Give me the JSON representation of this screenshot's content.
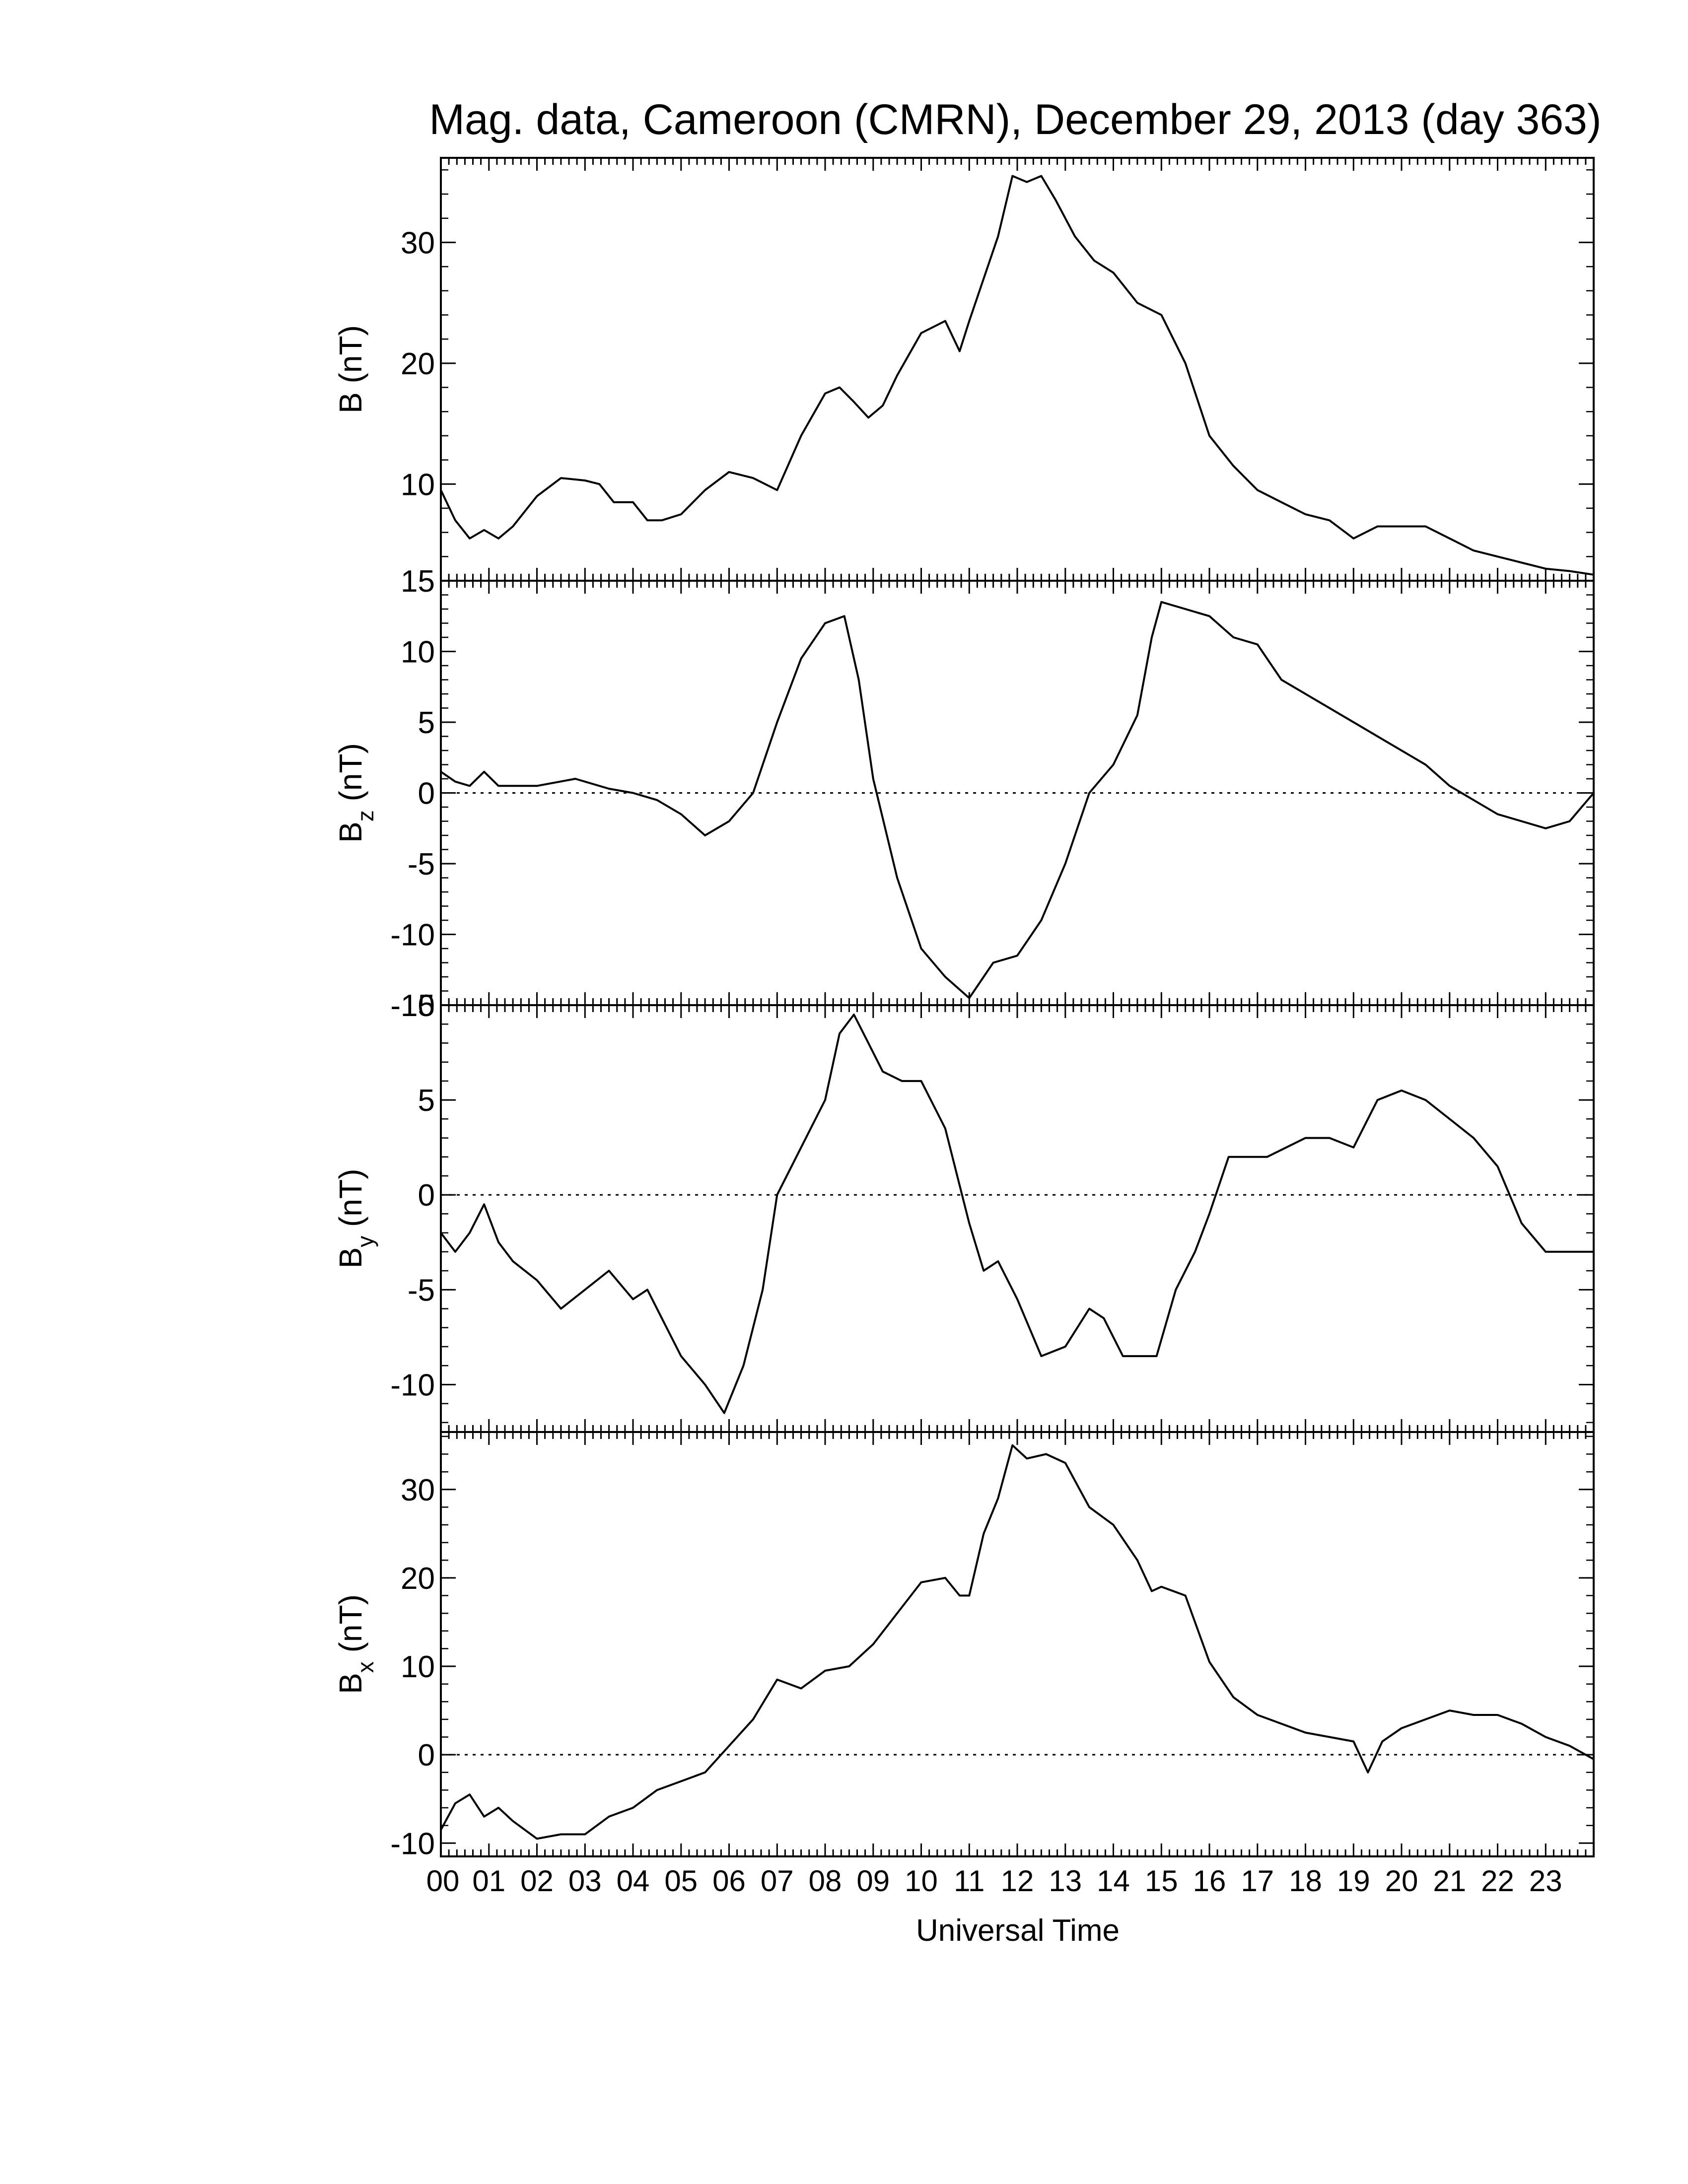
{
  "title": "Mag. data, Cameroon (CMRN), December 29, 2013 (day 363)",
  "xlabel": "Universal Time",
  "x_ticks": [
    "00",
    "01",
    "02",
    "03",
    "04",
    "05",
    "06",
    "07",
    "08",
    "09",
    "10",
    "11",
    "12",
    "13",
    "14",
    "15",
    "16",
    "17",
    "18",
    "19",
    "20",
    "21",
    "22",
    "23"
  ],
  "chart_data": [
    {
      "type": "line",
      "ylabel": "B (nT)",
      "ylabel_sub": "",
      "ylim": [
        2,
        37
      ],
      "yticks": [
        10,
        20,
        30
      ],
      "xlim": [
        0,
        24
      ],
      "zero_line": false,
      "x": [
        0,
        0.3,
        0.6,
        0.9,
        1.2,
        1.5,
        2.0,
        2.5,
        3.0,
        3.3,
        3.6,
        4.0,
        4.3,
        4.6,
        5.0,
        5.5,
        6.0,
        6.5,
        7.0,
        7.5,
        8.0,
        8.3,
        8.6,
        8.9,
        9.2,
        9.5,
        10.0,
        10.5,
        10.8,
        11.0,
        11.3,
        11.6,
        11.9,
        12.2,
        12.5,
        12.8,
        13.2,
        13.6,
        14.0,
        14.5,
        15.0,
        15.5,
        16.0,
        16.5,
        17.0,
        17.5,
        18.0,
        18.5,
        19.0,
        19.5,
        20.0,
        20.5,
        21.0,
        21.5,
        22.0,
        22.5,
        23.0,
        23.5,
        24.0
      ],
      "y": [
        9.5,
        7.0,
        5.5,
        6.2,
        5.5,
        6.5,
        9.0,
        10.5,
        10.3,
        10.0,
        8.5,
        8.5,
        7.0,
        7.0,
        7.5,
        9.5,
        11.0,
        10.5,
        9.5,
        14.0,
        17.5,
        18.0,
        16.8,
        15.5,
        16.5,
        19.0,
        22.5,
        23.5,
        21.0,
        23.5,
        27.0,
        30.5,
        35.5,
        35.0,
        35.5,
        33.5,
        30.5,
        28.5,
        27.5,
        25.0,
        24.0,
        20.0,
        14.0,
        11.5,
        9.5,
        8.5,
        7.5,
        7.0,
        5.5,
        6.5,
        6.5,
        6.5,
        5.5,
        4.5,
        4.0,
        3.5,
        3.0,
        2.8,
        2.5
      ]
    },
    {
      "type": "line",
      "ylabel": "B",
      "ylabel_sub": "z",
      "ylabel_unit": "(nT)",
      "ylim": [
        -15,
        15
      ],
      "yticks": [
        -15,
        -10,
        -5,
        0,
        5,
        10,
        15
      ],
      "xlim": [
        0,
        24
      ],
      "zero_line": true,
      "x": [
        0,
        0.3,
        0.6,
        0.9,
        1.2,
        2.0,
        2.8,
        3.5,
        4.0,
        4.5,
        5.0,
        5.5,
        6.0,
        6.5,
        7.0,
        7.5,
        8.0,
        8.4,
        8.7,
        9.0,
        9.5,
        10.0,
        10.5,
        11.0,
        11.5,
        12.0,
        12.5,
        13.0,
        13.5,
        14.0,
        14.5,
        14.8,
        15.0,
        15.5,
        16.0,
        16.5,
        17.0,
        17.5,
        18.0,
        18.5,
        19.0,
        19.5,
        20.0,
        20.5,
        21.0,
        21.5,
        22.0,
        22.5,
        23.0,
        23.5,
        24.0
      ],
      "y": [
        1.5,
        0.8,
        0.5,
        1.5,
        0.5,
        0.5,
        1.0,
        0.3,
        0,
        -0.5,
        -1.5,
        -3.0,
        -2.0,
        0,
        5.0,
        9.5,
        12.0,
        12.5,
        8.0,
        1.0,
        -6.0,
        -11.0,
        -13.0,
        -14.5,
        -12.0,
        -11.5,
        -9.0,
        -5.0,
        0,
        2.0,
        5.5,
        11.0,
        13.5,
        13.0,
        12.5,
        11.0,
        10.5,
        8.0,
        7.0,
        6.0,
        5.0,
        4.0,
        3.0,
        2.0,
        0.5,
        -0.5,
        -1.5,
        -2.0,
        -2.5,
        -2.0,
        0
      ]
    },
    {
      "type": "line",
      "ylabel": "B",
      "ylabel_sub": "y",
      "ylabel_unit": "(nT)",
      "ylim": [
        -12.5,
        10
      ],
      "yticks": [
        -10,
        -5,
        0,
        5,
        10
      ],
      "xlim": [
        0,
        24
      ],
      "zero_line": true,
      "x": [
        0,
        0.3,
        0.6,
        0.9,
        1.2,
        1.5,
        2.0,
        2.5,
        3.0,
        3.5,
        4.0,
        4.3,
        4.6,
        5.0,
        5.5,
        5.9,
        6.3,
        6.7,
        7.0,
        7.5,
        8.0,
        8.3,
        8.6,
        8.9,
        9.2,
        9.6,
        10.0,
        10.5,
        10.8,
        11.0,
        11.3,
        11.6,
        12.0,
        12.5,
        13.0,
        13.5,
        13.8,
        14.2,
        14.6,
        14.9,
        15.3,
        15.7,
        16.0,
        16.4,
        16.8,
        17.2,
        17.6,
        18.0,
        18.5,
        19.0,
        19.5,
        20.0,
        20.5,
        21.0,
        21.5,
        22.0,
        22.5,
        23.0,
        23.5,
        24.0
      ],
      "y": [
        -2.0,
        -3.0,
        -2.0,
        -0.5,
        -2.5,
        -3.5,
        -4.5,
        -6.0,
        -5.0,
        -4.0,
        -5.5,
        -5.0,
        -6.5,
        -8.5,
        -10.0,
        -11.5,
        -9.0,
        -5.0,
        0,
        2.5,
        5.0,
        8.5,
        9.5,
        8.0,
        6.5,
        6.0,
        6.0,
        3.5,
        0.5,
        -1.5,
        -4.0,
        -3.5,
        -5.5,
        -8.5,
        -8.0,
        -6.0,
        -6.5,
        -8.5,
        -8.5,
        -8.5,
        -5.0,
        -3.0,
        -1.0,
        2.0,
        2.0,
        2.0,
        2.5,
        3.0,
        3.0,
        2.5,
        5.0,
        5.5,
        5.0,
        4.0,
        3.0,
        1.5,
        -1.5,
        -3.0,
        -3.0,
        -3.0
      ]
    },
    {
      "type": "line",
      "ylabel": "B",
      "ylabel_sub": "x",
      "ylabel_unit": "(nT)",
      "ylim": [
        -11.5,
        36.5
      ],
      "yticks": [
        -10,
        0,
        10,
        20,
        30
      ],
      "xlim": [
        0,
        24
      ],
      "zero_line": true,
      "x": [
        0,
        0.3,
        0.6,
        0.9,
        1.2,
        1.5,
        2.0,
        2.5,
        3.0,
        3.5,
        4.0,
        4.5,
        5.0,
        5.5,
        6.0,
        6.5,
        7.0,
        7.5,
        8.0,
        8.5,
        9.0,
        9.5,
        10.0,
        10.5,
        10.8,
        11.0,
        11.3,
        11.6,
        11.9,
        12.2,
        12.6,
        13.0,
        13.5,
        14.0,
        14.5,
        14.8,
        15.0,
        15.5,
        16.0,
        16.5,
        17.0,
        17.5,
        18.0,
        18.5,
        19.0,
        19.3,
        19.6,
        20.0,
        20.5,
        21.0,
        21.5,
        22.0,
        22.5,
        23.0,
        23.5,
        24.0
      ],
      "y": [
        -8.5,
        -5.5,
        -4.5,
        -7.0,
        -6.0,
        -7.5,
        -9.5,
        -9.0,
        -9.0,
        -7.0,
        -6.0,
        -4.0,
        -3.0,
        -2.0,
        1.0,
        4.0,
        8.5,
        7.5,
        9.5,
        10.0,
        12.5,
        16.0,
        19.5,
        20.0,
        18.0,
        18.0,
        25.0,
        29.0,
        35.0,
        33.5,
        34.0,
        33.0,
        28.0,
        26.0,
        22.0,
        18.5,
        19.0,
        18.0,
        10.5,
        6.5,
        4.5,
        3.5,
        2.5,
        2.0,
        1.5,
        -2.0,
        1.5,
        3.0,
        4.0,
        5.0,
        4.5,
        4.5,
        3.5,
        2.0,
        1.0,
        -0.5
      ]
    }
  ]
}
